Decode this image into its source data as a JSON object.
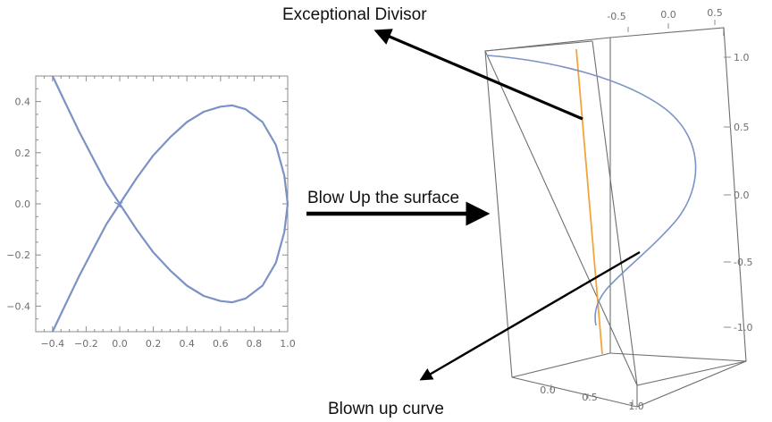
{
  "annotations": {
    "exceptional_divisor": "Exceptional Divisor",
    "blow_up_surface": "Blow Up the surface",
    "blown_up_curve": "Blown up curve"
  },
  "colors": {
    "curve": "#7b93c4",
    "exceptional_line": "#f2a53a",
    "arrow": "#000000",
    "frame": "#8c8c8c"
  },
  "chart_data": {
    "type": "line",
    "title": "",
    "xlabel": "",
    "ylabel": "",
    "xlim": [
      -0.5,
      1.0
    ],
    "ylim": [
      -0.5,
      0.5
    ],
    "xticks": [
      "-0.4",
      "-0.2",
      "0.0",
      "0.2",
      "0.4",
      "0.6",
      "0.8",
      "1.0"
    ],
    "yticks": [
      "0.4",
      "0.2",
      "0.0",
      "-0.2",
      "-0.4"
    ],
    "series": [
      {
        "x": [
          -0.4,
          -0.32,
          -0.24,
          -0.16,
          -0.08,
          0.0,
          0.1,
          0.2,
          0.3,
          0.4,
          0.5,
          0.6,
          0.67,
          0.75,
          0.85,
          0.93,
          0.98,
          1.0,
          0.98,
          0.93,
          0.85,
          0.75,
          0.67,
          0.6,
          0.5,
          0.4,
          0.3,
          0.2,
          0.1,
          0.0,
          -0.08,
          -0.16,
          -0.24,
          -0.32,
          -0.4
        ],
        "y": [
          0.5,
          0.39,
          0.28,
          0.18,
          0.08,
          0.0,
          0.1,
          0.19,
          0.26,
          0.32,
          0.36,
          0.38,
          0.385,
          0.37,
          0.32,
          0.23,
          0.11,
          0.0,
          -0.11,
          -0.23,
          -0.32,
          -0.37,
          -0.385,
          -0.38,
          -0.36,
          -0.32,
          -0.26,
          -0.19,
          -0.1,
          0.0,
          -0.08,
          -0.18,
          -0.28,
          -0.39,
          -0.5
        ]
      }
    ]
  },
  "plot3d": {
    "top_ticks": [
      "-0.5",
      "0.0",
      "0.5"
    ],
    "right_ticks": [
      "1.0",
      "0.5",
      "0.0",
      "-0.5",
      "-1.0"
    ],
    "bottom_ticks": [
      "0.0",
      "0.5",
      "1.0"
    ]
  }
}
